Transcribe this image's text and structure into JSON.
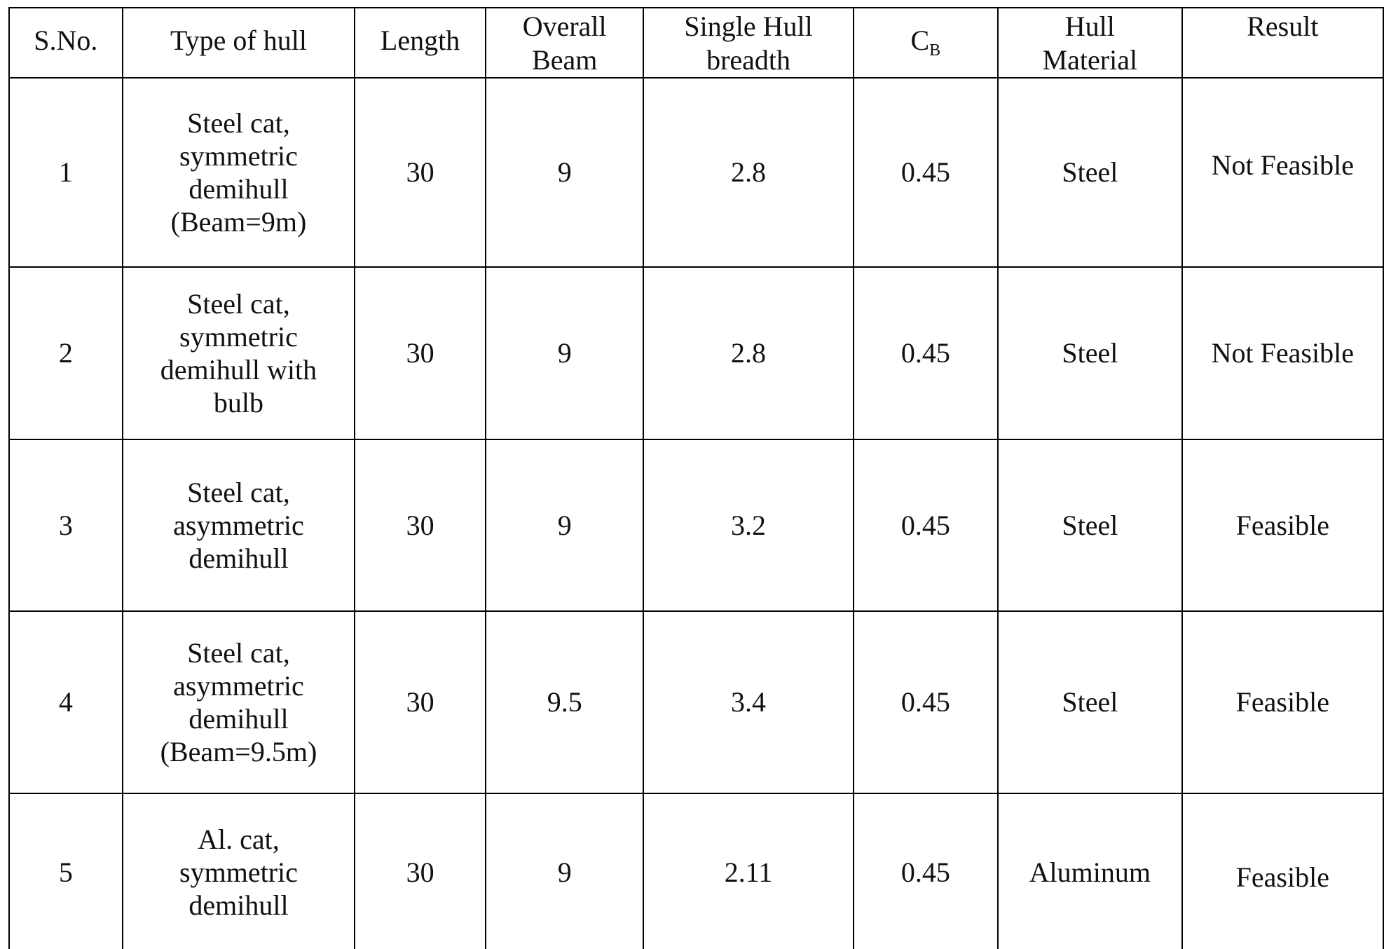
{
  "table": {
    "headers": {
      "sno": "S.No.",
      "type": "Type of hull",
      "length": "Length",
      "beam_line1": "Overall",
      "beam_line2": "Beam",
      "breadth_line1": "Single Hull",
      "breadth_line2": "breadth",
      "cb_main": "C",
      "cb_sub": "B",
      "material_line1": "Hull",
      "material_line2": "Material",
      "result": "Result"
    },
    "rows": [
      {
        "sno": "1",
        "type_lines": [
          "Steel cat,",
          "symmetric",
          "demihull",
          "(Beam=9m)"
        ],
        "length": "30",
        "beam": "9",
        "breadth": "2.8",
        "cb": "0.45",
        "material": "Steel",
        "result": "Not Feasible"
      },
      {
        "sno": "2",
        "type_lines": [
          "Steel cat,",
          "symmetric",
          "demihull with",
          "bulb"
        ],
        "length": "30",
        "beam": "9",
        "breadth": "2.8",
        "cb": "0.45",
        "material": "Steel",
        "result": "Not Feasible"
      },
      {
        "sno": "3",
        "type_lines": [
          "Steel cat,",
          "asymmetric",
          "demihull"
        ],
        "length": "30",
        "beam": "9",
        "breadth": "3.2",
        "cb": "0.45",
        "material": "Steel",
        "result": "Feasible"
      },
      {
        "sno": "4",
        "type_lines": [
          "Steel cat,",
          "asymmetric",
          "demihull",
          "(Beam=9.5m)"
        ],
        "length": "30",
        "beam": "9.5",
        "breadth": "3.4",
        "cb": "0.45",
        "material": "Steel",
        "result": "Feasible"
      },
      {
        "sno": "5",
        "type_lines": [
          "Al. cat,",
          "symmetric",
          "demihull"
        ],
        "length": "30",
        "beam": "9",
        "breadth": "2.11",
        "cb": "0.45",
        "material": "Aluminum",
        "result": "Feasible"
      }
    ]
  }
}
